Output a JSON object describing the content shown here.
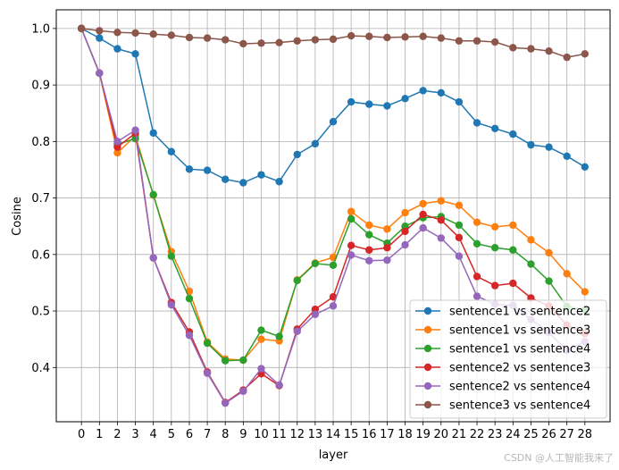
{
  "chart_data": {
    "type": "line",
    "xlabel": "layer",
    "ylabel": "Cosine",
    "x": [
      0,
      1,
      2,
      3,
      4,
      5,
      6,
      7,
      8,
      9,
      10,
      11,
      12,
      13,
      14,
      15,
      16,
      17,
      18,
      19,
      20,
      21,
      22,
      23,
      24,
      25,
      26,
      27,
      28
    ],
    "xlim": [
      -1.4,
      29.4
    ],
    "ylim": [
      0.304,
      1.033
    ],
    "yticks": [
      0.4,
      0.5,
      0.6,
      0.7,
      0.8,
      0.9,
      1.0
    ],
    "yticklabels": [
      "0.4",
      "0.5",
      "0.6",
      "0.7",
      "0.8",
      "0.9",
      "1.0"
    ],
    "grid": true,
    "legend_position": "bottom-right",
    "series": [
      {
        "name": "sentence1 vs sentence2",
        "color": "#1f77b4",
        "values": [
          1.0,
          0.983,
          0.964,
          0.955,
          0.815,
          0.782,
          0.751,
          0.749,
          0.733,
          0.727,
          0.741,
          0.729,
          0.777,
          0.796,
          0.835,
          0.87,
          0.866,
          0.863,
          0.876,
          0.89,
          0.886,
          0.87,
          0.833,
          0.823,
          0.813,
          0.794,
          0.79,
          0.774,
          0.755
        ]
      },
      {
        "name": "sentence1 vs sentence3",
        "color": "#ff7f0e",
        "values": [
          1.0,
          0.921,
          0.78,
          0.81,
          0.705,
          0.605,
          0.535,
          0.445,
          0.415,
          0.413,
          0.45,
          0.447,
          0.555,
          0.585,
          0.595,
          0.676,
          0.652,
          0.645,
          0.674,
          0.69,
          0.695,
          0.687,
          0.657,
          0.649,
          0.652,
          0.626,
          0.603,
          0.566,
          0.534
        ]
      },
      {
        "name": "sentence1 vs sentence4",
        "color": "#2ca02c",
        "values": [
          1.0,
          0.921,
          0.795,
          0.805,
          0.706,
          0.597,
          0.522,
          0.443,
          0.412,
          0.413,
          0.466,
          0.455,
          0.554,
          0.584,
          0.581,
          0.663,
          0.635,
          0.62,
          0.65,
          0.665,
          0.667,
          0.652,
          0.619,
          0.612,
          0.608,
          0.583,
          0.553,
          0.508,
          0.502
        ]
      },
      {
        "name": "sentence2 vs sentence3",
        "color": "#d62728",
        "values": [
          1.0,
          0.921,
          0.79,
          0.815,
          0.594,
          0.515,
          0.463,
          0.392,
          0.338,
          0.36,
          0.389,
          0.368,
          0.468,
          0.503,
          0.525,
          0.616,
          0.608,
          0.612,
          0.641,
          0.671,
          0.661,
          0.63,
          0.561,
          0.545,
          0.549,
          0.523,
          0.509,
          0.475,
          0.46
        ]
      },
      {
        "name": "sentence2 vs sentence4",
        "color": "#9467bd",
        "values": [
          1.0,
          0.921,
          0.8,
          0.82,
          0.594,
          0.511,
          0.457,
          0.39,
          0.337,
          0.358,
          0.398,
          0.369,
          0.464,
          0.494,
          0.509,
          0.599,
          0.589,
          0.59,
          0.617,
          0.647,
          0.629,
          0.597,
          0.526,
          0.512,
          0.51,
          0.485,
          0.462,
          0.43,
          0.446
        ]
      },
      {
        "name": "sentence3 vs sentence4",
        "color": "#8c564b",
        "values": [
          1.0,
          0.996,
          0.993,
          0.992,
          0.99,
          0.988,
          0.984,
          0.983,
          0.98,
          0.973,
          0.974,
          0.975,
          0.978,
          0.98,
          0.981,
          0.987,
          0.986,
          0.984,
          0.985,
          0.986,
          0.983,
          0.978,
          0.978,
          0.976,
          0.966,
          0.964,
          0.96,
          0.949,
          0.955
        ]
      }
    ]
  },
  "watermark": "CSDN @人工智能我来了"
}
